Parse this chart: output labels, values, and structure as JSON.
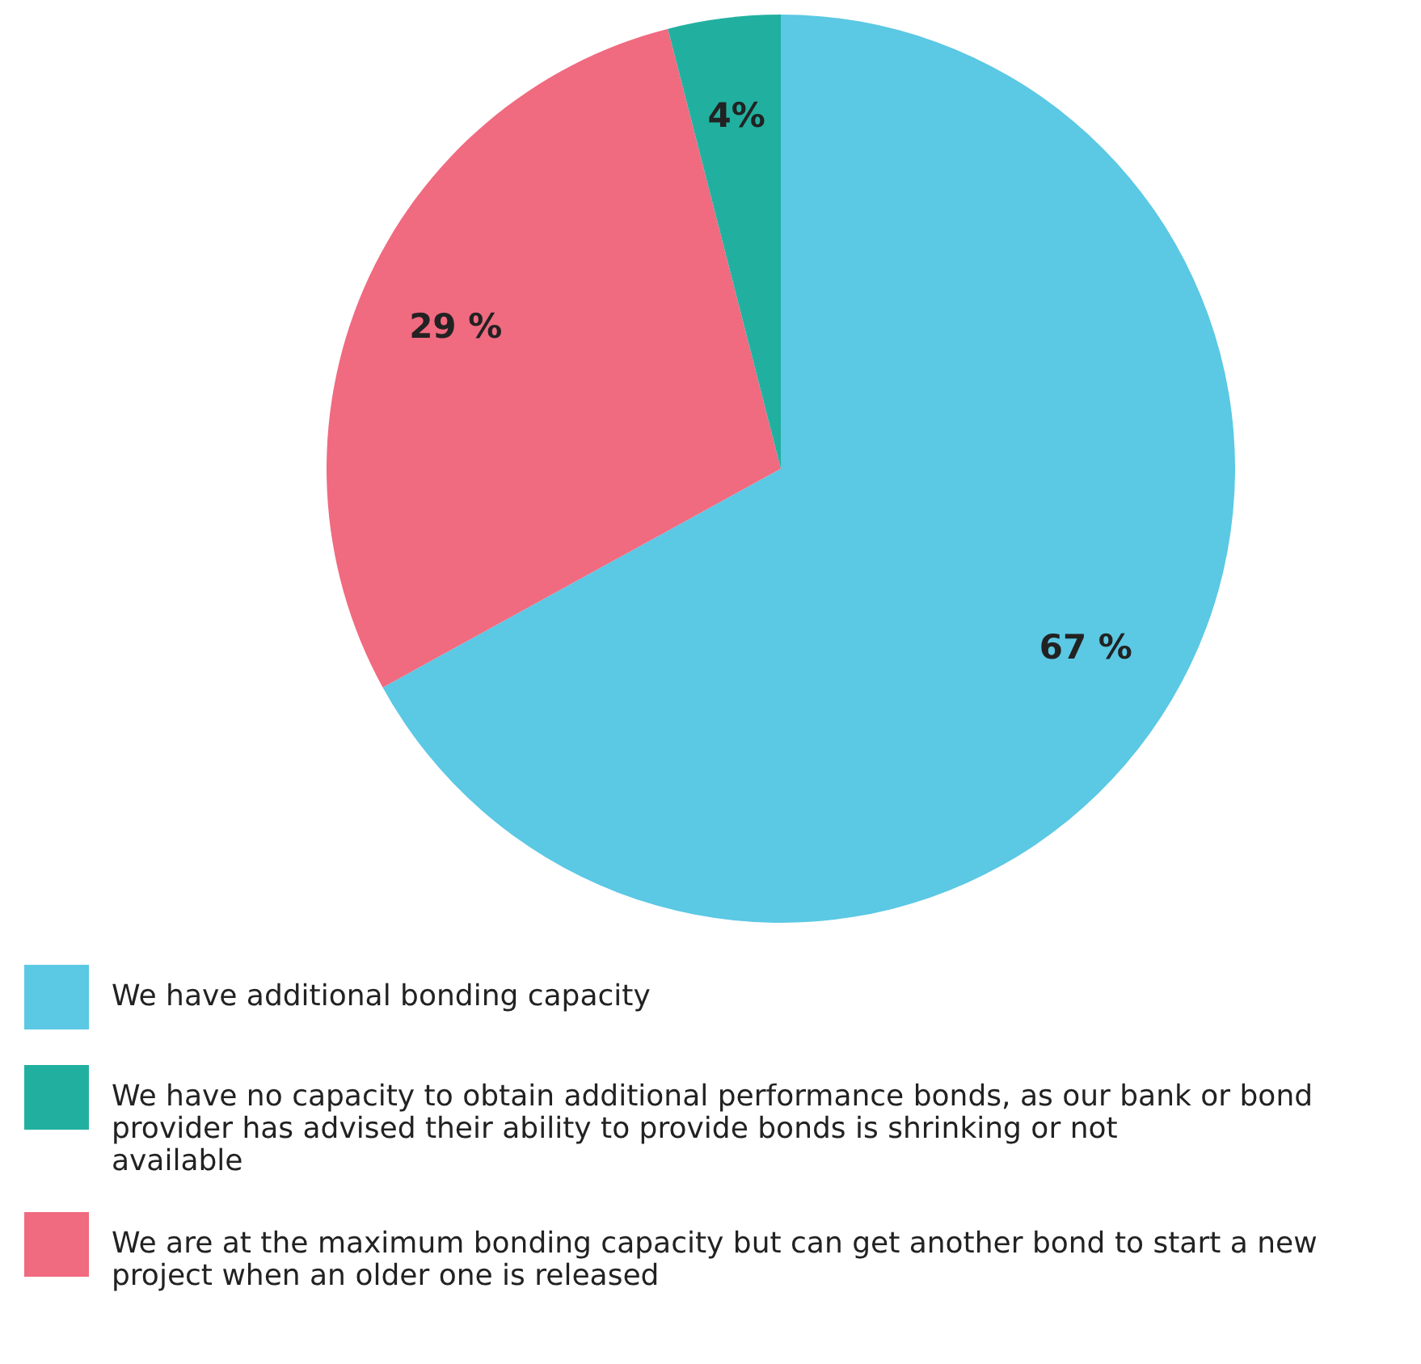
{
  "chart_data": {
    "type": "pie",
    "categories": [
      "We have additional bonding capacity",
      "We have no capacity to obtain additional performance bonds, as our bank or bond provider has advised their ability to provide bonds is shrinking or not available",
      "We are at the maximum bonding capacity but can get another bond to start a new project when an older one is released"
    ],
    "values": [
      67,
      4,
      29
    ],
    "colors": [
      "#5bc8e4",
      "#21b0a0",
      "#f06a80"
    ],
    "value_labels": [
      "67 %",
      "4%",
      "29 %"
    ],
    "legend": "bottom"
  }
}
